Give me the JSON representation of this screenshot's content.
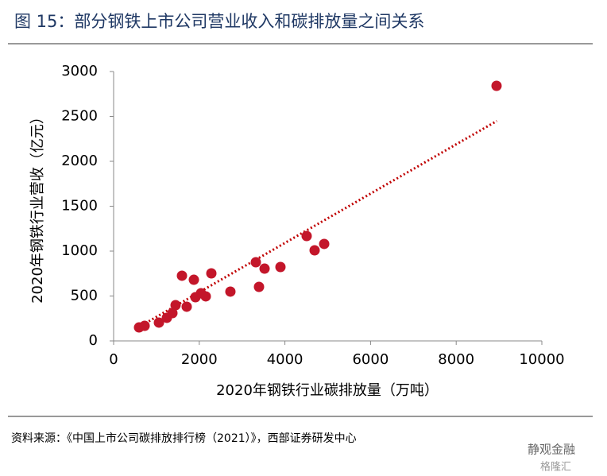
{
  "chart_data": {
    "type": "scatter",
    "title": "图 15：部分钢铁上市公司营业收入和碳排放量之间关系",
    "xlabel": "2020年钢铁行业碳排放量（万吨）",
    "ylabel": "2020年钢铁行业营收（亿元）",
    "x": [
      594,
      724,
      1058,
      1243,
      1373,
      1447,
      1707,
      1596,
      1874,
      1911,
      2041,
      2152,
      2282,
      2727,
      3321,
      3395,
      3525,
      3896,
      4508,
      4694,
      4917,
      8942
    ],
    "values": [
      150,
      168,
      204,
      257,
      310,
      398,
      381,
      726,
      681,
      487,
      531,
      496,
      752,
      549,
      876,
      602,
      805,
      823,
      1168,
      1009,
      1080,
      2841
    ],
    "color": "#c3162a",
    "trend_line": {
      "x": [
        500,
        8950
      ],
      "values": [
        130,
        2450
      ],
      "color": "#c00000"
    },
    "xlim": [
      0,
      10000
    ],
    "xticks": [
      0,
      2000,
      4000,
      6000,
      8000,
      10000
    ],
    "ylim": [
      0,
      3000
    ],
    "yticks": [
      0,
      500,
      1000,
      1500,
      2000,
      2500,
      3000
    ],
    "grid": false
  },
  "source": "资料来源：《中国上市公司碳排放排行榜（2021）》，西部证券研发中心",
  "watermark": [
    "静观金融",
    "格隆汇"
  ]
}
